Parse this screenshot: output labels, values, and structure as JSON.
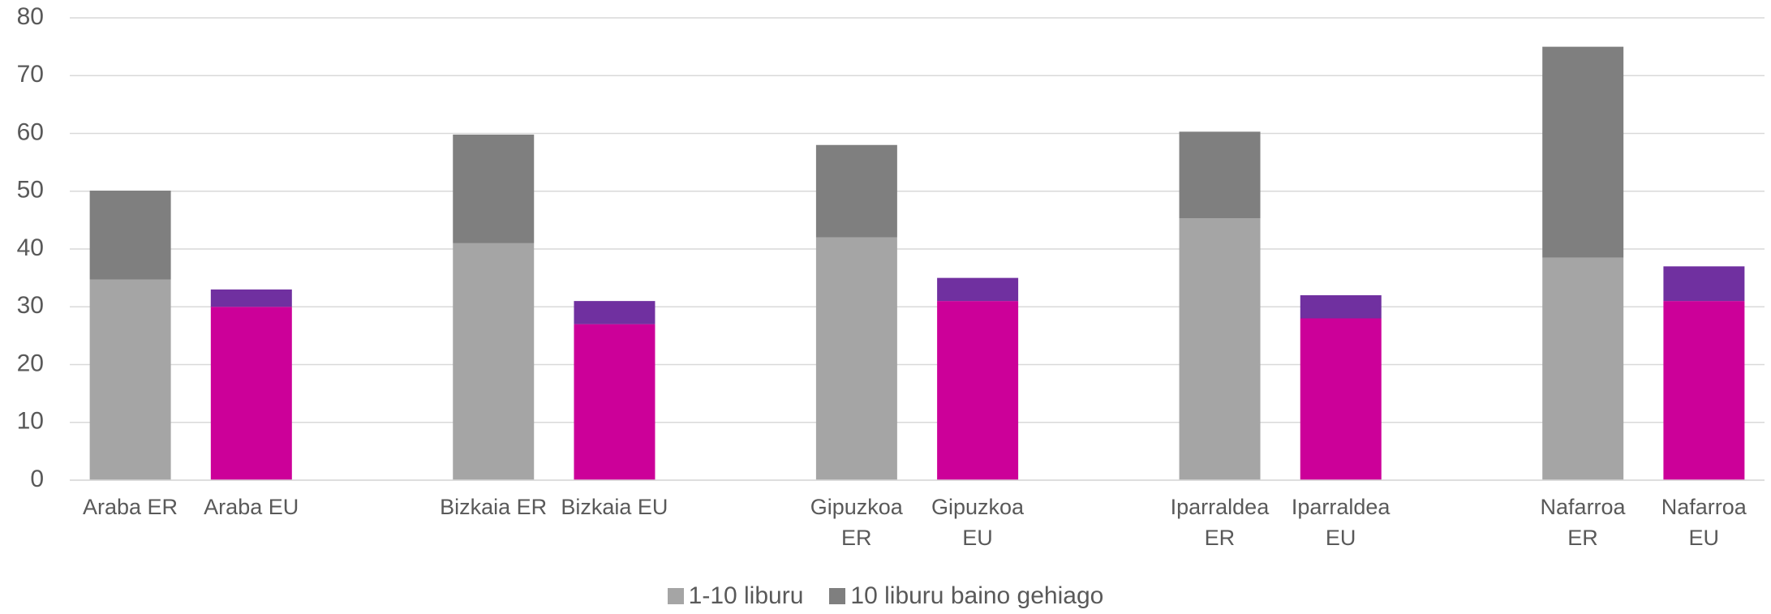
{
  "chart_data": {
    "type": "stacked_bar",
    "categories": [
      "Araba ER",
      "Araba EU",
      null,
      "Bizkaia ER",
      "Bizkaia EU",
      null,
      "Gipuzkoa ER",
      "Gipuzkoa EU",
      null,
      "Iparraldea ER",
      "Iparraldea EU",
      null,
      "Nafarroa ER",
      "Nafarroa EU"
    ],
    "series": [
      {
        "name": "1-10 liburu",
        "color": "#a5a5a5",
        "colors": [
          "#a5a5a5",
          "#cc0099",
          null,
          "#a5a5a5",
          "#cc0099",
          null,
          "#a5a5a5",
          "#cc0099",
          null,
          "#a5a5a5",
          "#cc0099",
          null,
          "#a5a5a5",
          "#cc0099"
        ],
        "values": [
          34.7,
          30,
          null,
          41,
          27,
          null,
          42,
          31,
          null,
          45.3,
          28,
          null,
          38.5,
          31
        ]
      },
      {
        "name": "10 liburu baino gehiago",
        "color": "#7f7f7f",
        "colors": [
          "#7f7f7f",
          "#7030a0",
          null,
          "#7f7f7f",
          "#7030a0",
          null,
          "#7f7f7f",
          "#7030a0",
          null,
          "#7f7f7f",
          "#7030a0",
          null,
          "#7f7f7f",
          "#7030a0"
        ],
        "values": [
          15.4,
          3,
          null,
          18.8,
          4,
          null,
          16,
          4,
          null,
          15,
          4,
          null,
          36.5,
          6
        ]
      }
    ],
    "ylim": [
      0,
      80
    ],
    "yticks": [
      0,
      10,
      20,
      30,
      40,
      50,
      60,
      70,
      80
    ],
    "grid": true,
    "legend": "bottom"
  }
}
